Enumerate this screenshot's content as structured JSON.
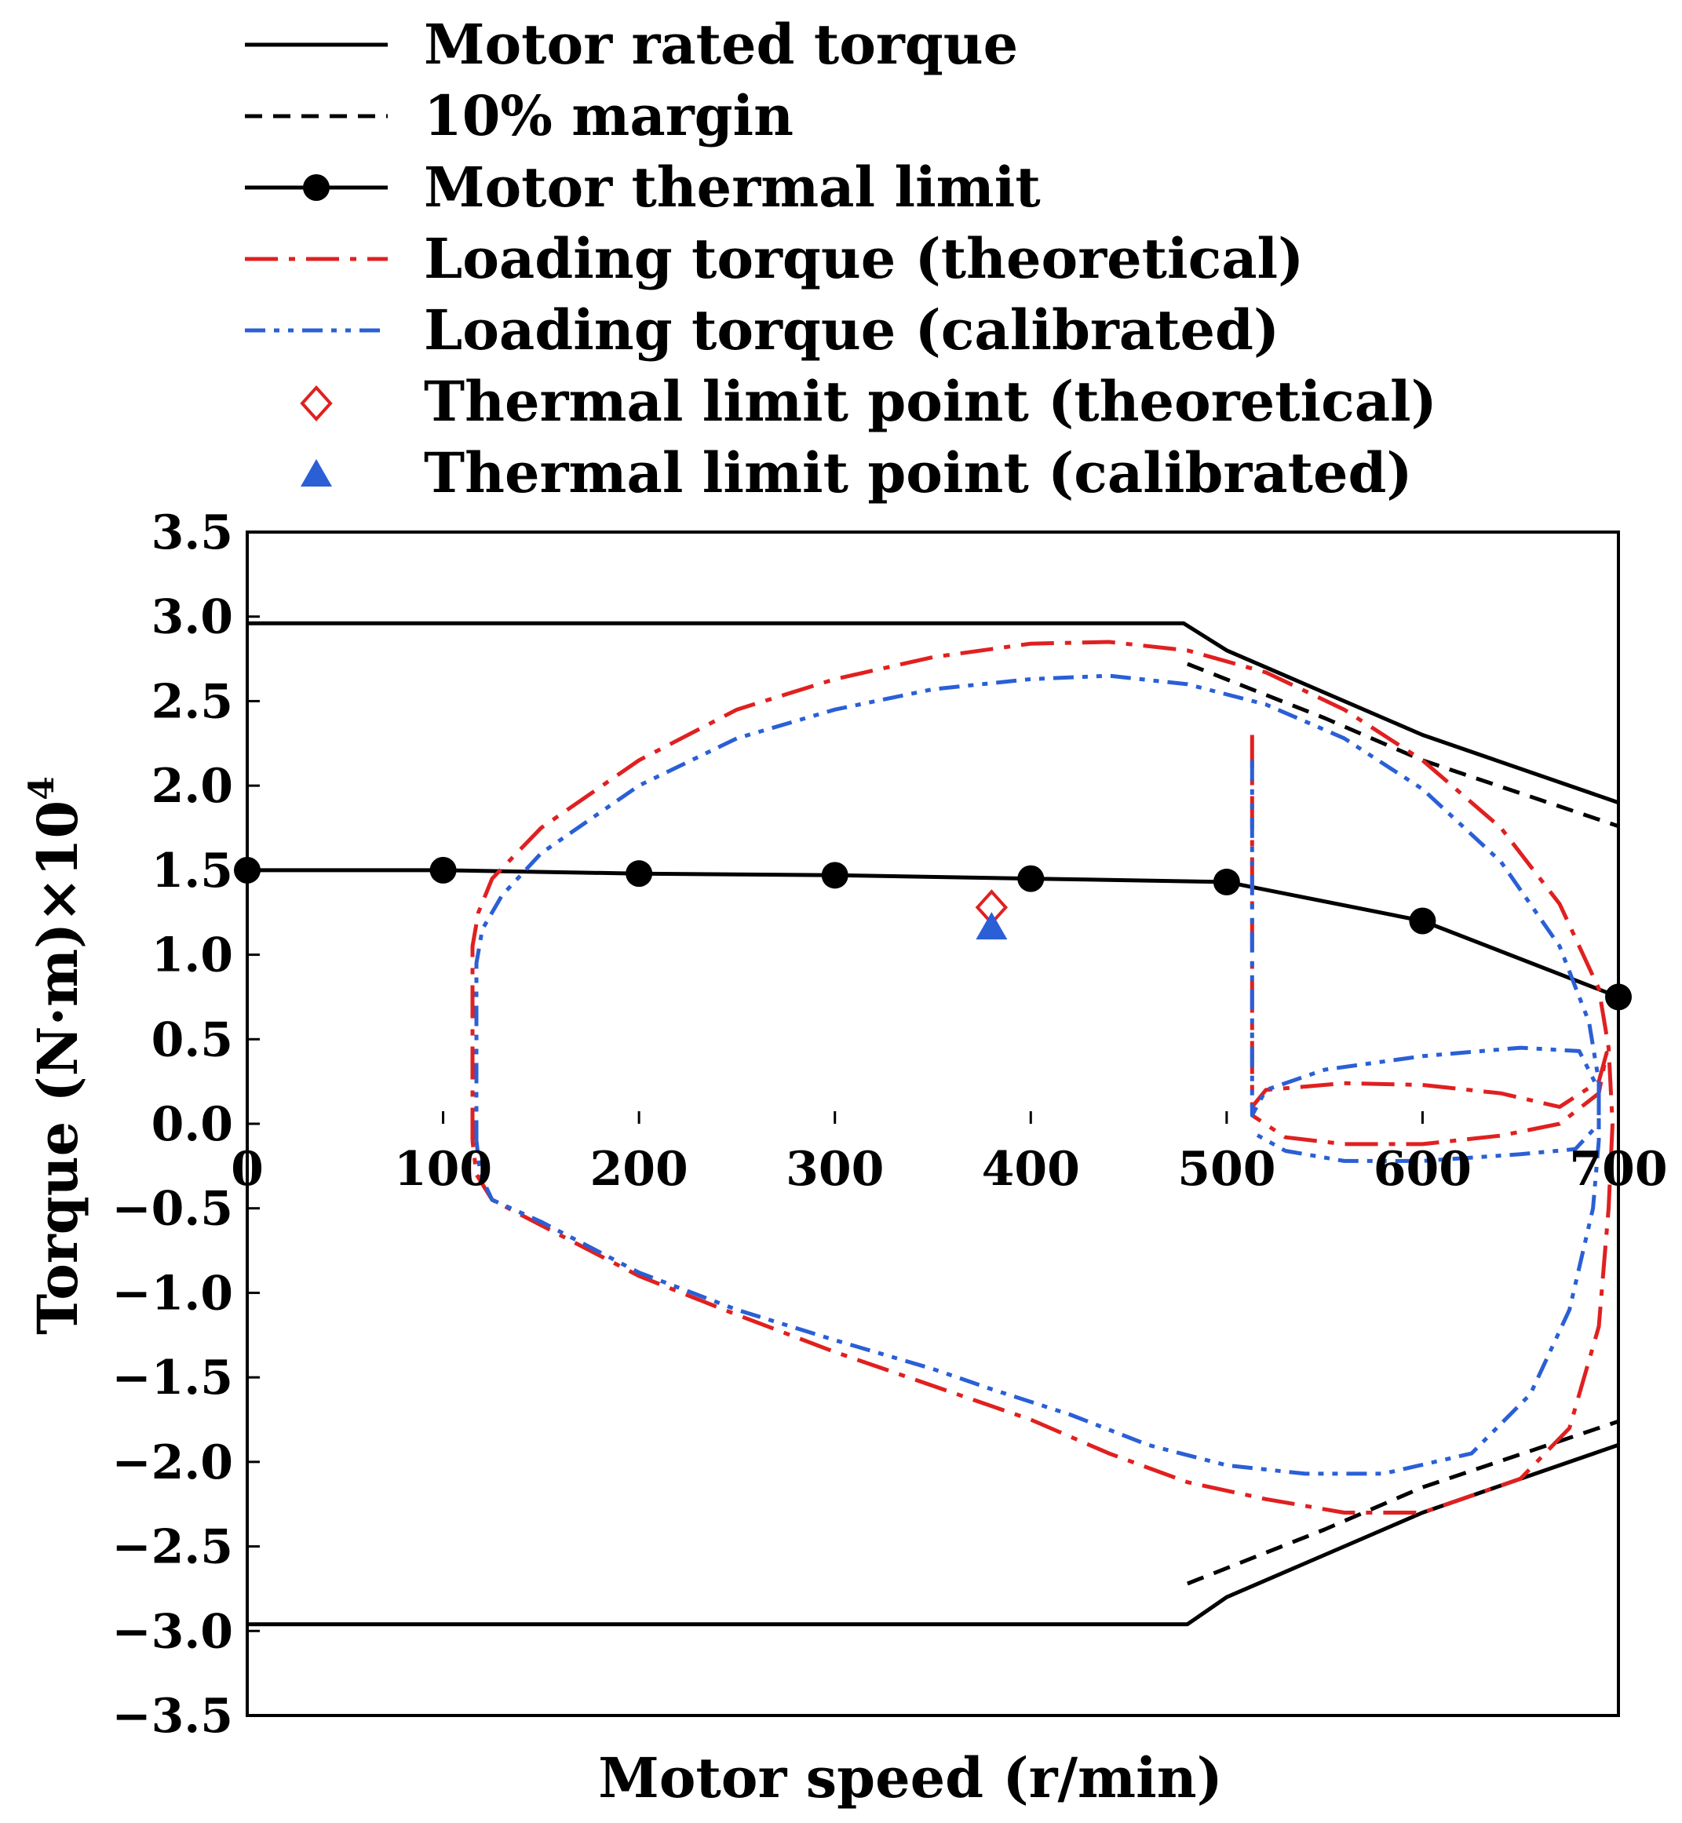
{
  "chart_data": {
    "type": "line",
    "title": "",
    "xlabel": "Motor speed (r/min)",
    "ylabel_base": "Torque (N·m)×10",
    "ylabel_exponent": "4",
    "xlim": [
      0,
      700
    ],
    "ylim": [
      -3.5,
      3.5
    ],
    "x_ticks": [
      0,
      100,
      200,
      300,
      400,
      500,
      600,
      700
    ],
    "x_tick_labels": [
      "0",
      "100",
      "200",
      "300",
      "400",
      "500",
      "600",
      "700"
    ],
    "y_ticks": [
      3.5,
      3.0,
      2.5,
      2.0,
      1.5,
      1.0,
      0.5,
      0.0,
      -0.5,
      -1.0,
      -1.5,
      -2.0,
      -2.5,
      -3.0,
      -3.5
    ],
    "y_tick_labels": [
      "3.5",
      "3.0",
      "2.5",
      "2.0",
      "1.5",
      "1.0",
      "0.5",
      "0.0",
      "−0.5",
      "−1.0",
      "−1.5",
      "−2.0",
      "−2.5",
      "−3.0",
      "−3.5"
    ],
    "grid": false,
    "legend_position": "above plot, left",
    "colors": {
      "black": "#000000",
      "red": "#e02020",
      "blue": "#2a5fd6"
    },
    "series": [
      {
        "name": "Motor rated torque",
        "style": "solid",
        "color": "#000000",
        "segments": [
          [
            [
              0,
              2.96
            ],
            [
              478,
              2.96
            ],
            [
              500,
              2.8
            ],
            [
              600,
              2.3
            ],
            [
              700,
              1.9
            ]
          ],
          [
            [
              0,
              -2.96
            ],
            [
              480,
              -2.96
            ],
            [
              500,
              -2.8
            ],
            [
              600,
              -2.3
            ],
            [
              700,
              -1.9
            ]
          ]
        ]
      },
      {
        "name": "10% margin",
        "style": "dashed",
        "color": "#000000",
        "segments": [
          [
            [
              480,
              2.72
            ],
            [
              550,
              2.4
            ],
            [
              600,
              2.15
            ],
            [
              700,
              1.76
            ]
          ],
          [
            [
              480,
              -2.72
            ],
            [
              550,
              -2.4
            ],
            [
              600,
              -2.15
            ],
            [
              700,
              -1.76
            ]
          ]
        ]
      },
      {
        "name": "Motor thermal limit",
        "style": "solid-markers",
        "color": "#000000",
        "segments": [
          [
            [
              0,
              1.5
            ],
            [
              100,
              1.5
            ],
            [
              200,
              1.48
            ],
            [
              300,
              1.47
            ],
            [
              400,
              1.45
            ],
            [
              500,
              1.43
            ],
            [
              600,
              1.2
            ],
            [
              700,
              0.75
            ]
          ]
        ]
      },
      {
        "name": "Loading torque (theoretical)",
        "style": "dashdot",
        "color": "#e02020",
        "segments": [
          [
            [
              115,
              -0.1
            ],
            [
              115,
              1.05
            ],
            [
              118,
              1.25
            ],
            [
              125,
              1.45
            ],
            [
              150,
              1.75
            ],
            [
              200,
              2.15
            ],
            [
              250,
              2.45
            ],
            [
              300,
              2.63
            ],
            [
              350,
              2.76
            ],
            [
              400,
              2.84
            ],
            [
              440,
              2.85
            ],
            [
              480,
              2.8
            ],
            [
              520,
              2.67
            ],
            [
              560,
              2.45
            ],
            [
              600,
              2.15
            ],
            [
              640,
              1.75
            ],
            [
              670,
              1.3
            ],
            [
              690,
              0.8
            ],
            [
              695,
              0.45
            ],
            [
              697,
              0
            ],
            [
              695,
              -0.5
            ],
            [
              690,
              -1.2
            ],
            [
              675,
              -1.8
            ],
            [
              650,
              -2.1
            ],
            [
              600,
              -2.3
            ],
            [
              560,
              -2.3
            ],
            [
              520,
              -2.22
            ],
            [
              480,
              -2.12
            ],
            [
              440,
              -1.95
            ],
            [
              400,
              -1.75
            ],
            [
              350,
              -1.55
            ],
            [
              300,
              -1.35
            ],
            [
              250,
              -1.13
            ],
            [
              200,
              -0.9
            ],
            [
              150,
              -0.6
            ],
            [
              125,
              -0.45
            ],
            [
              117,
              -0.3
            ],
            [
              115,
              -0.1
            ]
          ],
          [
            [
              513,
              2.3
            ],
            [
              513,
              0.1
            ],
            [
              520,
              0.2
            ],
            [
              560,
              0.24
            ],
            [
              600,
              0.23
            ],
            [
              640,
              0.18
            ],
            [
              670,
              0.1
            ],
            [
              690,
              0.25
            ],
            [
              694,
              0.42
            ],
            [
              690,
              0.18
            ],
            [
              670,
              0
            ],
            [
              640,
              -0.07
            ],
            [
              600,
              -0.12
            ],
            [
              560,
              -0.12
            ],
            [
              530,
              -0.08
            ],
            [
              513,
              0.05
            ]
          ]
        ]
      },
      {
        "name": "Loading torque (calibrated)",
        "style": "dashdotdot",
        "color": "#2a5fd6",
        "segments": [
          [
            [
              117,
              -0.1
            ],
            [
              117,
              0.95
            ],
            [
              120,
              1.15
            ],
            [
              130,
              1.35
            ],
            [
              150,
              1.6
            ],
            [
              200,
              2.0
            ],
            [
              250,
              2.28
            ],
            [
              300,
              2.45
            ],
            [
              350,
              2.57
            ],
            [
              400,
              2.63
            ],
            [
              440,
              2.65
            ],
            [
              480,
              2.6
            ],
            [
              520,
              2.48
            ],
            [
              560,
              2.28
            ],
            [
              600,
              1.98
            ],
            [
              640,
              1.55
            ],
            [
              670,
              1.05
            ],
            [
              685,
              0.6
            ],
            [
              690,
              0.25
            ],
            [
              690,
              -0.1
            ],
            [
              687,
              -0.5
            ],
            [
              675,
              -1.1
            ],
            [
              655,
              -1.6
            ],
            [
              625,
              -1.95
            ],
            [
              580,
              -2.07
            ],
            [
              540,
              -2.07
            ],
            [
              500,
              -2.02
            ],
            [
              460,
              -1.9
            ],
            [
              420,
              -1.72
            ],
            [
              380,
              -1.57
            ],
            [
              350,
              -1.45
            ],
            [
              300,
              -1.28
            ],
            [
              250,
              -1.1
            ],
            [
              200,
              -0.88
            ],
            [
              150,
              -0.58
            ],
            [
              125,
              -0.45
            ],
            [
              119,
              -0.3
            ],
            [
              117,
              -0.1
            ]
          ],
          [
            [
              513,
              2.15
            ],
            [
              513,
              0.05
            ],
            [
              520,
              0.2
            ],
            [
              550,
              0.32
            ],
            [
              600,
              0.4
            ],
            [
              650,
              0.45
            ],
            [
              680,
              0.43
            ],
            [
              690,
              0.2
            ],
            [
              690,
              0
            ],
            [
              678,
              -0.15
            ],
            [
              650,
              -0.18
            ],
            [
              600,
              -0.22
            ],
            [
              560,
              -0.22
            ],
            [
              530,
              -0.16
            ],
            [
              513,
              -0.05
            ]
          ]
        ]
      }
    ],
    "points": [
      {
        "name": "Thermal limit point (theoretical)",
        "marker": "diamond-open",
        "color": "#e02020",
        "x": 380,
        "y": 1.28
      },
      {
        "name": "Thermal limit point (calibrated)",
        "marker": "triangle-filled",
        "color": "#2a5fd6",
        "x": 380,
        "y": 1.16
      }
    ],
    "legend": [
      {
        "label": "Motor rated torque",
        "symbol": "solid"
      },
      {
        "label": "10% margin",
        "symbol": "dashed"
      },
      {
        "label": "Motor thermal limit",
        "symbol": "solid-markers"
      },
      {
        "label": "Loading torque (theoretical)",
        "symbol": "dashdot"
      },
      {
        "label": "Loading torque (calibrated)",
        "symbol": "dashdotdot"
      },
      {
        "label": "Thermal limit point (theoretical)",
        "symbol": "diamond-open"
      },
      {
        "label": "Thermal limit point (calibrated)",
        "symbol": "triangle-filled"
      }
    ]
  }
}
